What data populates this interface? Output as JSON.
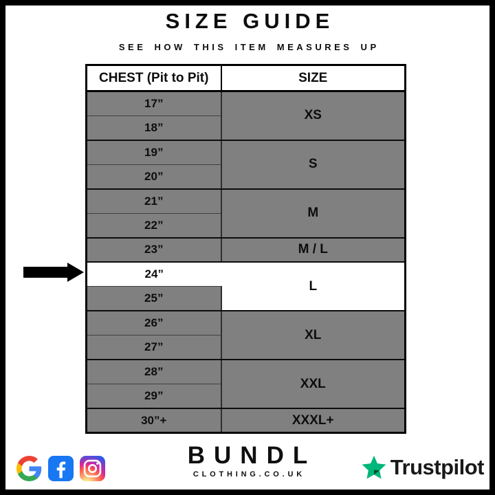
{
  "header": {
    "title": "SIZE GUIDE",
    "subtitle": "SEE HOW THIS ITEM MEASURES UP"
  },
  "table": {
    "columns": [
      "CHEST (Pit to Pit)",
      "SIZE"
    ],
    "rows": [
      {
        "chest": "17”",
        "size": "XS",
        "span": 2,
        "group_end": false,
        "highlight": false
      },
      {
        "chest": "18”",
        "group_end": true,
        "highlight": false
      },
      {
        "chest": "19”",
        "size": "S",
        "span": 2,
        "group_end": false,
        "highlight": false
      },
      {
        "chest": "20”",
        "group_end": true,
        "highlight": false
      },
      {
        "chest": "21”",
        "size": "M",
        "span": 2,
        "group_end": false,
        "highlight": false
      },
      {
        "chest": "22”",
        "group_end": true,
        "highlight": false
      },
      {
        "chest": "23”",
        "size": "M / L",
        "span": 1,
        "group_end": true,
        "highlight": false
      },
      {
        "chest": "24”",
        "size": "L",
        "span": 2,
        "group_end": false,
        "highlight": true
      },
      {
        "chest": "25”",
        "group_end": true,
        "highlight": false
      },
      {
        "chest": "26”",
        "size": "XL",
        "span": 2,
        "group_end": false,
        "highlight": false
      },
      {
        "chest": "27”",
        "group_end": true,
        "highlight": false
      },
      {
        "chest": "28”",
        "size": "XXL",
        "span": 2,
        "group_end": false,
        "highlight": false
      },
      {
        "chest": "29”",
        "group_end": true,
        "highlight": false
      },
      {
        "chest": "30”+",
        "size": "XXXL+",
        "span": 1,
        "group_end": true,
        "highlight": false
      }
    ]
  },
  "annotation": {
    "arrow_points_to_chest": "24”",
    "arrow_points_to_size": "L",
    "arrow_direction": "right"
  },
  "footer": {
    "brand": {
      "name": "BUNDL",
      "domain": "CLOTHING.CO.UK"
    },
    "social_icons": [
      "google-icon",
      "facebook-icon",
      "instagram-icon"
    ],
    "trustpilot": {
      "label": "Trustpilot"
    }
  },
  "colors": {
    "row_gray": "#808080",
    "highlight_white": "#ffffff",
    "border_black": "#000000",
    "trustpilot_green": "#00b67a",
    "trustpilot_shadow_green": "#005128",
    "facebook_blue": "#1877f2"
  }
}
